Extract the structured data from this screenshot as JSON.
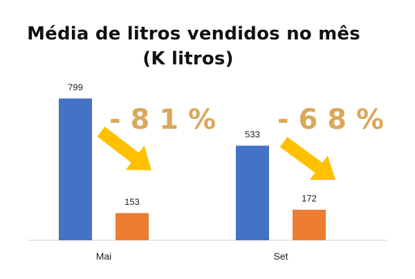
{
  "chart_data": {
    "type": "bar",
    "title": "Média de litros vendidos no mês",
    "subtitle": "(K litros)",
    "categories": [
      "Mai",
      "Set"
    ],
    "series": [
      {
        "values": [
          799,
          533
        ],
        "color": "#4472C4"
      },
      {
        "values": [
          153,
          172
        ],
        "color": "#ED7D31"
      }
    ],
    "annotations": [
      {
        "category": "Mai",
        "text": "- 8 1 %"
      },
      {
        "category": "Set",
        "text": "- 6 8 %"
      }
    ],
    "ylim": [
      0,
      800
    ],
    "grid": false,
    "legend": "none"
  },
  "colors": {
    "annotation_text": "#D9A85B",
    "arrow": "#FFC000",
    "axis": "#D9D9D9"
  }
}
